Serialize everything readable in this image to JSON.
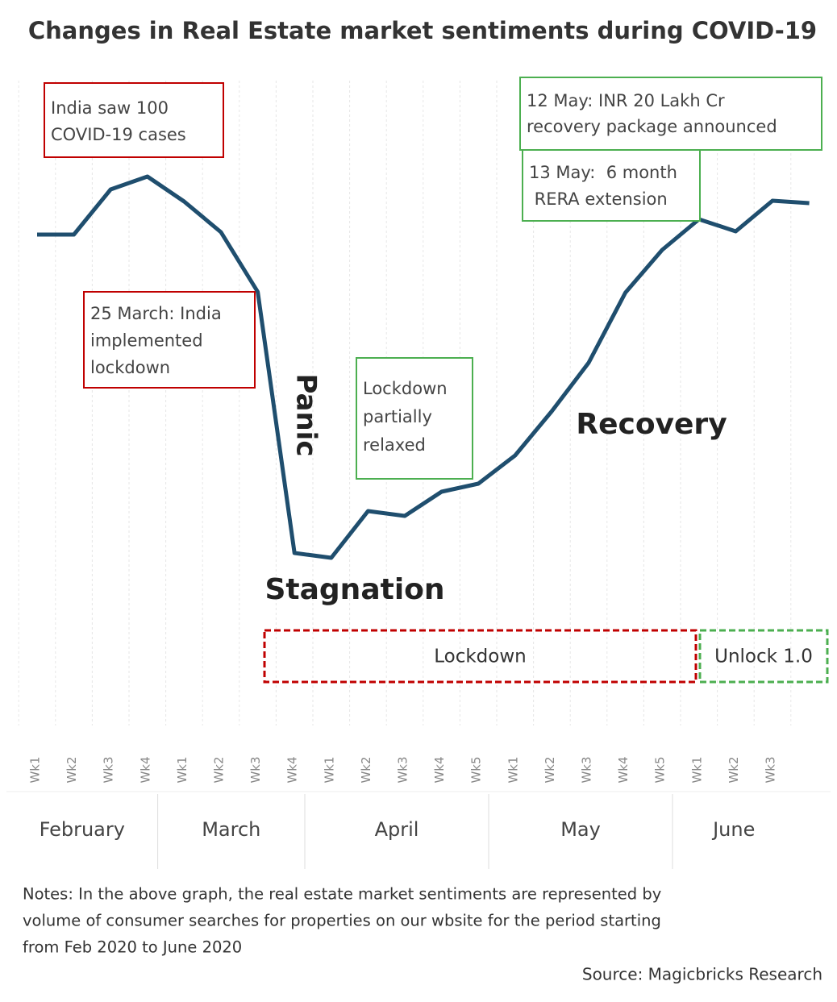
{
  "chart_data": {
    "type": "line",
    "title": "Changes in Real Estate market sentiments during COVID-19",
    "categories": [
      "Wk1",
      "Wk2",
      "Wk3",
      "Wk4",
      "Wk1",
      "Wk2",
      "Wk3",
      "Wk4",
      "Wk1",
      "Wk2",
      "Wk3",
      "Wk4",
      "Wk5",
      "Wk1",
      "Wk2",
      "Wk3",
      "Wk4",
      "Wk5",
      "Wk1",
      "Wk2",
      "Wk3",
      null
    ],
    "months": [
      "February",
      "March",
      "April",
      "May",
      "June"
    ],
    "series": [
      {
        "color": "#1f4e6e",
        "values": [
          409,
          409,
          465,
          481,
          450,
          412,
          338,
          14,
          8,
          66,
          60,
          90,
          100,
          135,
          190,
          250,
          337,
          390,
          428,
          413,
          451,
          448
        ]
      }
    ],
    "grid": true,
    "annotations": [
      {
        "lines": [
          "India saw 100",
          "COVID-19 cases"
        ],
        "color": "#c00000"
      },
      {
        "lines": [
          "25 March: India",
          "implemented",
          "lockdown"
        ],
        "color": "#c00000"
      },
      {
        "lines": [
          "Lockdown",
          "partially",
          "relaxed"
        ],
        "color": "#4caf50"
      },
      {
        "lines": [
          "12 May: INR 20 Lakh Cr",
          "recovery package announced"
        ],
        "color": "#4caf50"
      },
      {
        "lines": [
          "13 May:  6 month",
          " RERA extension"
        ],
        "color": "#4caf50"
      }
    ],
    "phases": [
      "Panic",
      "Stagnation",
      "Recovery"
    ],
    "periods": [
      {
        "label": "Lockdown",
        "color": "#c00000"
      },
      {
        "label": "Unlock 1.0",
        "color": "#4caf50"
      }
    ],
    "notes": [
      "Notes:  In the above graph, the real estate market sentiments are represented by",
      "volume of consumer searches for properties on our wbsite for the period starting",
      "from Feb 2020 to June 2020"
    ],
    "source": "Source: Magicbricks Research"
  }
}
